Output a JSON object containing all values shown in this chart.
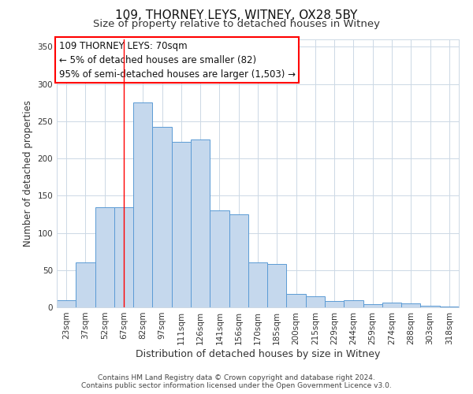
{
  "title": "109, THORNEY LEYS, WITNEY, OX28 5BY",
  "subtitle": "Size of property relative to detached houses in Witney",
  "xlabel": "Distribution of detached houses by size in Witney",
  "ylabel": "Number of detached properties",
  "categories": [
    "23sqm",
    "37sqm",
    "52sqm",
    "67sqm",
    "82sqm",
    "97sqm",
    "111sqm",
    "126sqm",
    "141sqm",
    "156sqm",
    "170sqm",
    "185sqm",
    "200sqm",
    "215sqm",
    "229sqm",
    "244sqm",
    "259sqm",
    "274sqm",
    "288sqm",
    "303sqm",
    "318sqm"
  ],
  "values": [
    10,
    60,
    135,
    135,
    275,
    242,
    222,
    225,
    130,
    125,
    60,
    58,
    18,
    15,
    9,
    10,
    4,
    6,
    5,
    2,
    1
  ],
  "bar_color": "#c5d8ed",
  "bar_edge_color": "#5b9bd5",
  "red_line_x": 3,
  "ylim": [
    0,
    360
  ],
  "yticks": [
    0,
    50,
    100,
    150,
    200,
    250,
    300,
    350
  ],
  "annotation_title": "109 THORNEY LEYS: 70sqm",
  "annotation_line1": "← 5% of detached houses are smaller (82)",
  "annotation_line2": "95% of semi-detached houses are larger (1,503) →",
  "footer1": "Contains HM Land Registry data © Crown copyright and database right 2024.",
  "footer2": "Contains public sector information licensed under the Open Government Licence v3.0.",
  "background_color": "#ffffff",
  "plot_background": "#ffffff",
  "grid_color": "#ccd8e5",
  "title_fontsize": 11,
  "subtitle_fontsize": 9.5,
  "xlabel_fontsize": 9,
  "ylabel_fontsize": 8.5,
  "footer_fontsize": 6.5,
  "annotation_fontsize": 8.5,
  "tick_fontsize": 7.5
}
